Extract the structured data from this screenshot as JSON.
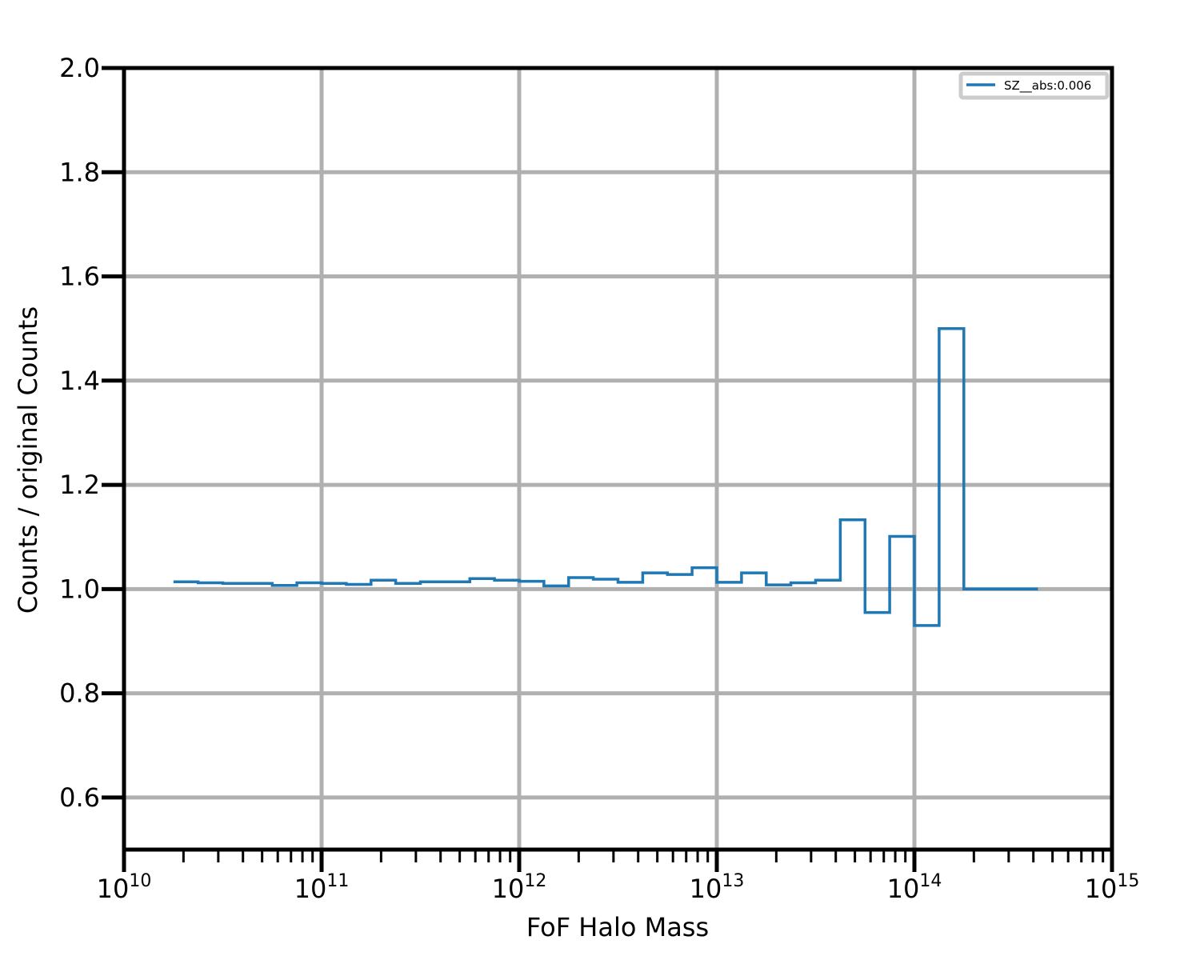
{
  "chart_data": {
    "type": "line",
    "drawstyle": "steps",
    "xlabel": "FoF Halo Mass",
    "ylabel": "Counts / original Counts",
    "xscale": "log",
    "xlim": [
      10000000000.0,
      1000000000000000.0
    ],
    "ylim": [
      0.5,
      2.0
    ],
    "grid": true,
    "legend_position": "top-right",
    "x_ticks": [
      {
        "base": "10",
        "exp": "10"
      },
      {
        "base": "10",
        "exp": "11"
      },
      {
        "base": "10",
        "exp": "12"
      },
      {
        "base": "10",
        "exp": "13"
      },
      {
        "base": "10",
        "exp": "14"
      },
      {
        "base": "10",
        "exp": "15"
      }
    ],
    "y_ticks": [
      "0.6",
      "0.8",
      "1.0",
      "1.2",
      "1.4",
      "1.6",
      "1.8",
      "2.0"
    ],
    "series": [
      {
        "name": "SZ__abs:0.006",
        "color": "#1f77b4",
        "bin_edges_log10": [
          10.25,
          10.375,
          10.5,
          10.625,
          10.75,
          10.875,
          11.0,
          11.125,
          11.25,
          11.375,
          11.5,
          11.625,
          11.75,
          11.875,
          12.0,
          12.125,
          12.25,
          12.375,
          12.5,
          12.625,
          12.75,
          12.875,
          13.0,
          13.125,
          13.25,
          13.375,
          13.5,
          13.625,
          13.75,
          13.875,
          14.0,
          14.125,
          14.25,
          14.375,
          14.5,
          14.625
        ],
        "values": [
          1.014,
          1.012,
          1.011,
          1.011,
          1.007,
          1.012,
          1.011,
          1.009,
          1.017,
          1.011,
          1.014,
          1.014,
          1.02,
          1.017,
          1.015,
          1.006,
          1.022,
          1.019,
          1.013,
          1.031,
          1.028,
          1.041,
          1.013,
          1.031,
          1.008,
          1.012,
          1.017,
          1.133,
          0.955,
          1.101,
          0.93,
          1.5,
          1.0,
          1.0,
          1.0
        ]
      }
    ]
  }
}
